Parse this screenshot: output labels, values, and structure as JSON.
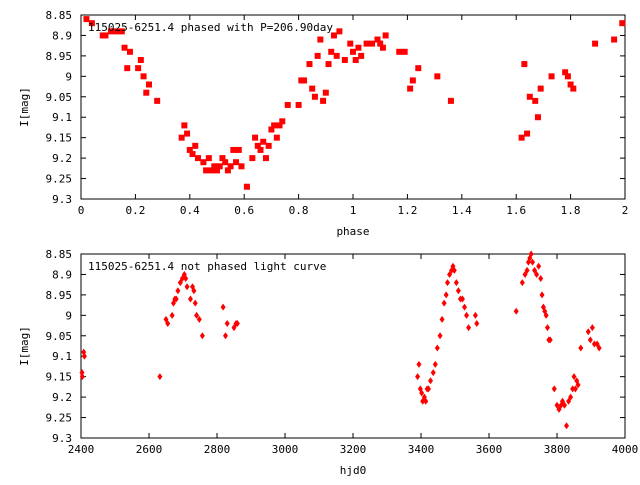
{
  "chart_data": [
    {
      "type": "scatter",
      "title": "115025-6251.4 phased with P=206.90day",
      "xlabel": "phase",
      "ylabel": "I[mag]",
      "xlim": [
        0,
        2
      ],
      "ylim": [
        8.85,
        9.3
      ],
      "y_inverted": true,
      "x_ticks": [
        "0",
        "0.2",
        "0.4",
        "0.6",
        "0.8",
        "1",
        "1.2",
        "1.4",
        "1.6",
        "1.8",
        "2"
      ],
      "y_ticks": [
        "8.85",
        "8.9",
        "8.95",
        "9",
        "9.05",
        "9.1",
        "9.15",
        "9.2",
        "9.25",
        "9.3"
      ],
      "marker": "filled-square",
      "color": "#ff0000",
      "series": [
        {
          "x": [
            0.02,
            0.04,
            0.08,
            0.09,
            0.11,
            0.13,
            0.15,
            0.16,
            0.17,
            0.18,
            0.21,
            0.22,
            0.23,
            0.24,
            0.25,
            0.28,
            0.37,
            0.38,
            0.39,
            0.4,
            0.41,
            0.42,
            0.43,
            0.45,
            0.46,
            0.47,
            0.48,
            0.49,
            0.5,
            0.51,
            0.52,
            0.53,
            0.54,
            0.55,
            0.56,
            0.57,
            0.58,
            0.59,
            0.61,
            0.63,
            0.64,
            0.65,
            0.66,
            0.67,
            0.68,
            0.69,
            0.7,
            0.71,
            0.72,
            0.73,
            0.74,
            0.76,
            0.8,
            0.81,
            0.82,
            0.84,
            0.85,
            0.86,
            0.87,
            0.88,
            0.89,
            0.9,
            0.91,
            0.92,
            0.93,
            0.94,
            0.95,
            0.97,
            0.99,
            1.0,
            1.01,
            1.02,
            1.03,
            1.05,
            1.07,
            1.09,
            1.1,
            1.11,
            1.12,
            1.17,
            1.19,
            1.21,
            1.22,
            1.24,
            1.31,
            1.36,
            1.62,
            1.63,
            1.64,
            1.65,
            1.67,
            1.68,
            1.69,
            1.73,
            1.78,
            1.79,
            1.8,
            1.81,
            1.89,
            1.96,
            1.99
          ],
          "y": [
            8.86,
            8.87,
            8.9,
            8.9,
            8.89,
            8.89,
            8.89,
            8.93,
            8.98,
            8.94,
            8.98,
            8.96,
            9.0,
            9.04,
            9.02,
            9.06,
            9.15,
            9.12,
            9.14,
            9.18,
            9.19,
            9.17,
            9.2,
            9.21,
            9.23,
            9.2,
            9.23,
            9.22,
            9.23,
            9.22,
            9.2,
            9.21,
            9.23,
            9.22,
            9.18,
            9.21,
            9.18,
            9.22,
            9.27,
            9.2,
            9.15,
            9.17,
            9.18,
            9.16,
            9.2,
            9.17,
            9.13,
            9.12,
            9.15,
            9.12,
            9.11,
            9.07,
            9.07,
            9.01,
            9.01,
            8.97,
            9.03,
            9.05,
            8.95,
            8.91,
            9.06,
            9.04,
            8.97,
            8.94,
            8.9,
            8.95,
            8.89,
            8.96,
            8.92,
            8.94,
            8.96,
            8.93,
            8.95,
            8.92,
            8.92,
            8.91,
            8.92,
            8.93,
            8.9,
            8.94,
            8.94,
            9.03,
            9.01,
            8.98,
            9.0,
            9.06,
            9.15,
            8.97,
            9.14,
            9.05,
            9.06,
            9.1,
            9.03,
            9.0,
            8.99,
            9.0,
            9.02,
            9.03,
            8.92,
            8.91,
            8.87
          ]
        }
      ]
    },
    {
      "type": "scatter",
      "title": "115025-6251.4 not phased light curve",
      "xlabel": "hjd0",
      "ylabel": "I[mag]",
      "xlim": [
        2400,
        4000
      ],
      "ylim": [
        8.85,
        9.3
      ],
      "y_inverted": true,
      "x_ticks": [
        "2400",
        "2600",
        "2800",
        "3000",
        "3200",
        "3400",
        "3600",
        "3800",
        "4000"
      ],
      "y_ticks": [
        "8.85",
        "8.9",
        "8.95",
        "9",
        "9.05",
        "9.1",
        "9.15",
        "9.2",
        "9.25",
        "9.3"
      ],
      "marker": "filled-diamond",
      "color": "#ff0000",
      "series": [
        {
          "x": [
            2403,
            2404,
            2408,
            2410,
            2632,
            2650,
            2655,
            2668,
            2672,
            2676,
            2680,
            2685,
            2692,
            2698,
            2704,
            2708,
            2712,
            2722,
            2728,
            2732,
            2736,
            2740,
            2748,
            2757,
            2818,
            2825,
            2830,
            2850,
            2856,
            2860,
            3390,
            3394,
            3398,
            3402,
            3405,
            3410,
            3414,
            3418,
            3422,
            3428,
            3436,
            3442,
            3448,
            3456,
            3462,
            3468,
            3474,
            3478,
            3484,
            3490,
            3494,
            3498,
            3504,
            3510,
            3516,
            3522,
            3528,
            3534,
            3540,
            3560,
            3564,
            3680,
            3698,
            3706,
            3712,
            3716,
            3720,
            3724,
            3728,
            3734,
            3740,
            3746,
            3752,
            3756,
            3760,
            3764,
            3768,
            3772,
            3776,
            3780,
            3792,
            3800,
            3806,
            3812,
            3816,
            3822,
            3828,
            3834,
            3840,
            3846,
            3850,
            3854,
            3858,
            3862,
            3870,
            3892,
            3898,
            3904,
            3910,
            3918,
            3924
          ],
          "y": [
            9.14,
            9.15,
            9.09,
            9.1,
            9.15,
            9.01,
            9.02,
            9.0,
            8.97,
            8.96,
            8.96,
            8.94,
            8.92,
            8.91,
            8.9,
            8.91,
            8.93,
            8.96,
            8.93,
            8.94,
            8.97,
            9.0,
            9.01,
            9.05,
            8.98,
            9.05,
            9.02,
            9.03,
            9.02,
            9.02,
            9.15,
            9.12,
            9.18,
            9.19,
            9.21,
            9.2,
            9.21,
            9.18,
            9.18,
            9.16,
            9.14,
            9.12,
            9.08,
            9.05,
            9.01,
            8.97,
            8.95,
            8.92,
            8.9,
            8.89,
            8.88,
            8.89,
            8.92,
            8.94,
            8.96,
            8.96,
            8.98,
            9.0,
            9.03,
            9.0,
            9.02,
            8.99,
            8.92,
            8.9,
            8.89,
            8.87,
            8.86,
            8.85,
            8.87,
            8.89,
            8.9,
            8.88,
            8.91,
            8.95,
            8.98,
            8.99,
            9.0,
            9.03,
            9.06,
            9.06,
            9.18,
            9.22,
            9.23,
            9.22,
            9.21,
            9.22,
            9.27,
            9.21,
            9.2,
            9.18,
            9.15,
            9.18,
            9.16,
            9.17,
            9.08,
            9.04,
            9.06,
            9.03,
            9.07,
            9.07,
            9.08
          ]
        }
      ]
    }
  ]
}
